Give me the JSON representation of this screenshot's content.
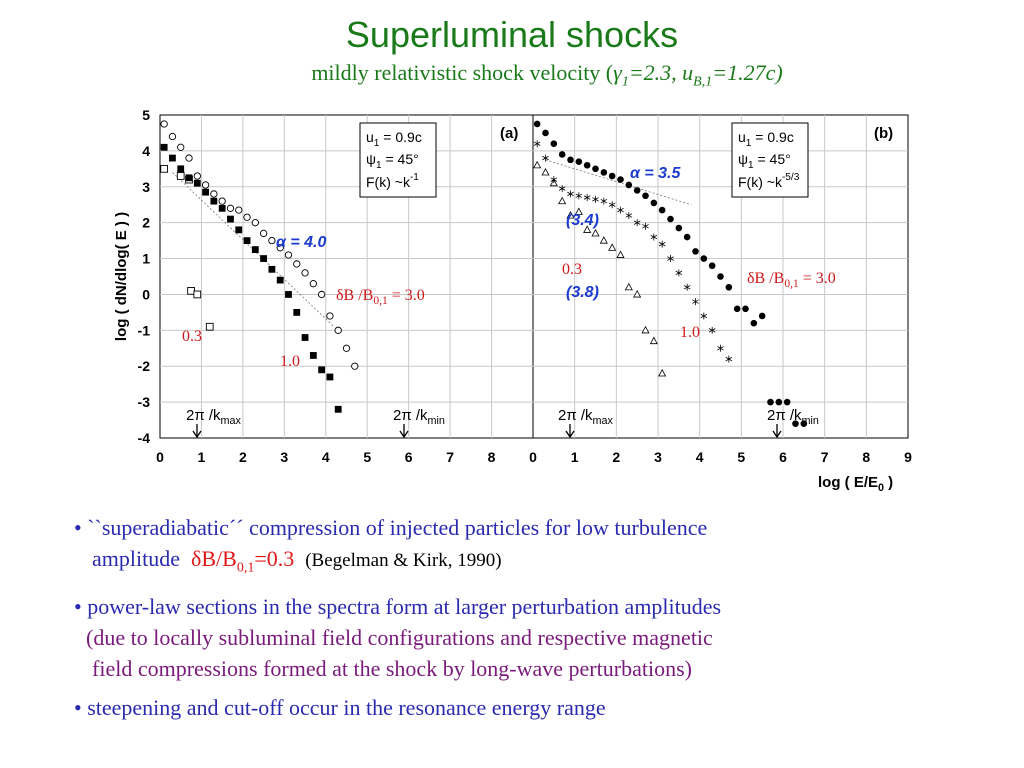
{
  "slide": {
    "title": "Superluminal shocks",
    "subtitle_pre": "mildly relativistic shock velocity (",
    "subtitle_gamma": "γ",
    "subtitle_gamma_sub": "1",
    "subtitle_mid": "=2.3, u",
    "subtitle_u_sub": "B,1",
    "subtitle_post": "=1.27c)"
  },
  "bullets": {
    "b1_line1": "``superadiabatic´´ compression of injected particles for low turbulence",
    "b1_line2": "amplitude",
    "b1_dB": "δB/B",
    "b1_dB_sub": "0,1",
    "b1_dB_val": "=0.3",
    "b1_ref": "(Begelman & Kirk, 1990)",
    "b2_line1": "power-law sections in the spectra form at larger perturbation amplitudes",
    "b2_line2": "(due to locally subluminal field configurations and respective magnetic",
    "b2_line3": "field compressions formed at the shock by long-wave perturbations)",
    "b3_line1": "steepening and cut-off occur in the resonance energy range",
    "bullet_char": "•"
  },
  "colors": {
    "title": "#1a7a1a",
    "blue_text": "#2a2ab0",
    "purple_text": "#7a1a7a",
    "red_text": "#e01818",
    "annot_blue": "#1a3ad0",
    "annot_red": "#d01818"
  },
  "chart_data": [
    {
      "type": "scatter",
      "panel_label": "(a)",
      "xlabel": "log ( E/E0 )",
      "ylabel": "log ( dN/dlog( E ) )",
      "xlim": [
        0,
        9
      ],
      "ylim": [
        -4,
        5
      ],
      "x_ticks": [
        "0",
        "1",
        "2",
        "3",
        "4",
        "5",
        "6",
        "7",
        "8"
      ],
      "y_ticks": [
        "5",
        "4",
        "3",
        "2",
        "1",
        "0",
        "-1",
        "-2",
        "-3",
        "-4"
      ],
      "legend_box": [
        "u1 = 0.9c",
        "ψ1 = 45°",
        "F(k) ~k^-1"
      ],
      "annotations": {
        "alpha": "α  = 4.0",
        "dB_main": "δB /B0,1 = 3.0",
        "dB_03": "0.3",
        "dB_10": "1.0",
        "kmax": "2π /kmax",
        "kmin": "2π /kmin"
      },
      "kmax_x": 0.9,
      "kmin_x": 5.85,
      "series": [
        {
          "name": "0.3",
          "marker": "open-square",
          "x": [
            0.1,
            0.5,
            0.7,
            0.75,
            0.9,
            1.2
          ],
          "y": [
            3.5,
            3.3,
            3.2,
            0.1,
            0.0,
            -0.9
          ]
        },
        {
          "name": "1.0",
          "marker": "filled-square",
          "x": [
            0.1,
            0.3,
            0.5,
            0.7,
            0.9,
            1.1,
            1.3,
            1.5,
            1.7,
            1.9,
            2.1,
            2.3,
            2.5,
            2.7,
            2.9,
            3.1,
            3.3,
            3.5,
            3.7,
            3.9,
            4.1,
            4.3
          ],
          "y": [
            4.1,
            3.8,
            3.5,
            3.25,
            3.1,
            2.85,
            2.6,
            2.4,
            2.1,
            1.8,
            1.5,
            1.25,
            1.0,
            0.7,
            0.4,
            0.0,
            -0.5,
            -1.2,
            -1.7,
            -2.1,
            -2.3,
            -3.2
          ]
        },
        {
          "name": "3.0",
          "marker": "open-circle",
          "x": [
            0.1,
            0.3,
            0.5,
            0.7,
            0.9,
            1.1,
            1.3,
            1.5,
            1.7,
            1.9,
            2.1,
            2.3,
            2.5,
            2.7,
            2.9,
            3.1,
            3.3,
            3.5,
            3.7,
            3.9,
            4.1,
            4.3,
            4.5,
            4.7
          ],
          "y": [
            4.75,
            4.4,
            4.1,
            3.8,
            3.3,
            3.05,
            2.8,
            2.6,
            2.4,
            2.35,
            2.15,
            2.0,
            1.7,
            1.5,
            1.3,
            1.1,
            0.85,
            0.6,
            0.3,
            0.0,
            -0.6,
            -1.0,
            -1.5,
            -2.0
          ]
        }
      ],
      "fit_line": {
        "x": [
          0.3,
          4.2
        ],
        "y": [
          3.4,
          -0.9
        ]
      }
    },
    {
      "type": "scatter",
      "panel_label": "(b)",
      "xlabel": "log ( E/E0 )",
      "ylabel": "",
      "xlim": [
        0,
        9
      ],
      "ylim": [
        -4,
        5
      ],
      "x_ticks": [
        "0",
        "1",
        "2",
        "3",
        "4",
        "5",
        "6",
        "7",
        "8",
        "9"
      ],
      "legend_box": [
        "u1 = 0.9c",
        "ψ1 = 45°",
        "F(k) ~k^-5/3"
      ],
      "annotations": {
        "alpha": "α  = 3.5",
        "alpha_34": "(3.4)",
        "alpha_38": "(3.8)",
        "dB_main": "δB /B0,1 = 3.0",
        "dB_03": "0.3",
        "dB_10": "1.0",
        "kmax": "2π /kmax",
        "kmin": "2π /kmin"
      },
      "kmax_x": 0.9,
      "kmin_x": 5.85,
      "series": [
        {
          "name": "0.3",
          "marker": "open-triangle",
          "x": [
            0.1,
            0.3,
            0.5,
            0.7,
            0.9,
            1.1,
            1.3,
            1.5,
            1.7,
            1.9,
            2.1,
            2.3,
            2.5,
            2.7,
            2.9,
            3.1
          ],
          "y": [
            3.6,
            3.4,
            3.1,
            2.6,
            2.2,
            2.3,
            1.8,
            1.7,
            1.5,
            1.3,
            1.1,
            0.2,
            0.0,
            -1.0,
            -1.3,
            -2.2
          ]
        },
        {
          "name": "1.0",
          "marker": "asterisk",
          "x": [
            0.1,
            0.3,
            0.5,
            0.7,
            0.9,
            1.1,
            1.3,
            1.5,
            1.7,
            1.9,
            2.1,
            2.3,
            2.5,
            2.7,
            2.9,
            3.1,
            3.3,
            3.5,
            3.7,
            3.9,
            4.1,
            4.3,
            4.5,
            4.7
          ],
          "y": [
            4.2,
            3.8,
            3.2,
            2.95,
            2.8,
            2.75,
            2.7,
            2.65,
            2.6,
            2.5,
            2.35,
            2.2,
            2.0,
            1.9,
            1.6,
            1.4,
            1.0,
            0.6,
            0.2,
            -0.2,
            -0.6,
            -1.0,
            -1.5,
            -1.8
          ]
        },
        {
          "name": "3.0",
          "marker": "filled-circle",
          "x": [
            0.1,
            0.3,
            0.5,
            0.7,
            0.9,
            1.1,
            1.3,
            1.5,
            1.7,
            1.9,
            2.1,
            2.3,
            2.5,
            2.7,
            2.9,
            3.1,
            3.3,
            3.5,
            3.7,
            3.9,
            4.1,
            4.3,
            4.5,
            4.7,
            4.9,
            5.1,
            5.3,
            5.5,
            5.7,
            5.9,
            6.1,
            6.3,
            6.5
          ],
          "y": [
            4.75,
            4.5,
            4.2,
            3.9,
            3.75,
            3.7,
            3.6,
            3.5,
            3.4,
            3.3,
            3.2,
            3.05,
            2.9,
            2.75,
            2.55,
            2.35,
            2.1,
            1.85,
            1.6,
            1.2,
            1.0,
            0.8,
            0.5,
            0.2,
            -0.4,
            -0.4,
            -0.8,
            -0.6,
            -3.0,
            -3.0,
            -3.0,
            -3.6,
            -3.6
          ]
        }
      ],
      "fit_line": {
        "x": [
          0.3,
          3.8
        ],
        "y": [
          3.75,
          2.5
        ]
      }
    }
  ]
}
